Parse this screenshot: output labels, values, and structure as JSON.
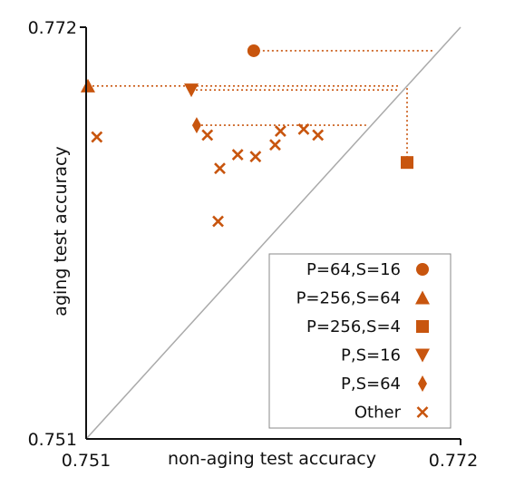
{
  "chart_data": {
    "type": "scatter",
    "xlabel": "non-aging test accuracy",
    "ylabel": "aging test accuracy",
    "xlim": [
      0.751,
      0.772
    ],
    "ylim": [
      0.751,
      0.772
    ],
    "x_ticks": [
      "0.751",
      "0.772"
    ],
    "y_ticks": [
      "0.751",
      "0.772"
    ],
    "diagonal": true,
    "grid": false,
    "legend_position": "bottom-right",
    "colors": {
      "marker": "#c8550e",
      "diagonal": "#aaaaaa",
      "axis": "#111111"
    },
    "series": [
      {
        "name": "P=64,S=16",
        "marker": "circle",
        "points": [
          {
            "x": 0.7604,
            "y": 0.7708
          }
        ]
      },
      {
        "name": "P=256,S=64",
        "marker": "triangle-up",
        "points": [
          {
            "x": 0.7511,
            "y": 0.769
          }
        ]
      },
      {
        "name": "P=256,S=4",
        "marker": "square",
        "points": [
          {
            "x": 0.769,
            "y": 0.7651
          }
        ]
      },
      {
        "name": "P,S=16",
        "marker": "triangle-down",
        "points": [
          {
            "x": 0.7569,
            "y": 0.7688
          }
        ]
      },
      {
        "name": "P,S=64",
        "marker": "diamond",
        "points": [
          {
            "x": 0.7572,
            "y": 0.767
          }
        ]
      },
      {
        "name": "Other",
        "marker": "x",
        "points": [
          {
            "x": 0.7516,
            "y": 0.7664
          },
          {
            "x": 0.7578,
            "y": 0.7665
          },
          {
            "x": 0.7585,
            "y": 0.7648
          },
          {
            "x": 0.7595,
            "y": 0.7655
          },
          {
            "x": 0.7605,
            "y": 0.7654
          },
          {
            "x": 0.7616,
            "y": 0.766
          },
          {
            "x": 0.7619,
            "y": 0.7667
          },
          {
            "x": 0.7632,
            "y": 0.7668
          },
          {
            "x": 0.764,
            "y": 0.7665
          },
          {
            "x": 0.7584,
            "y": 0.7621
          }
        ]
      }
    ],
    "projections": [
      {
        "from": "P=64,S=16",
        "to_x": 0.7705
      },
      {
        "from": "P=256,S=64",
        "to_x": 0.7686
      },
      {
        "from": "P,S=16",
        "to_x": 0.7686
      },
      {
        "from": "P,S=64",
        "to_x": 0.7667
      },
      {
        "from": "P=256,S=4",
        "to_y": 0.769
      }
    ]
  }
}
